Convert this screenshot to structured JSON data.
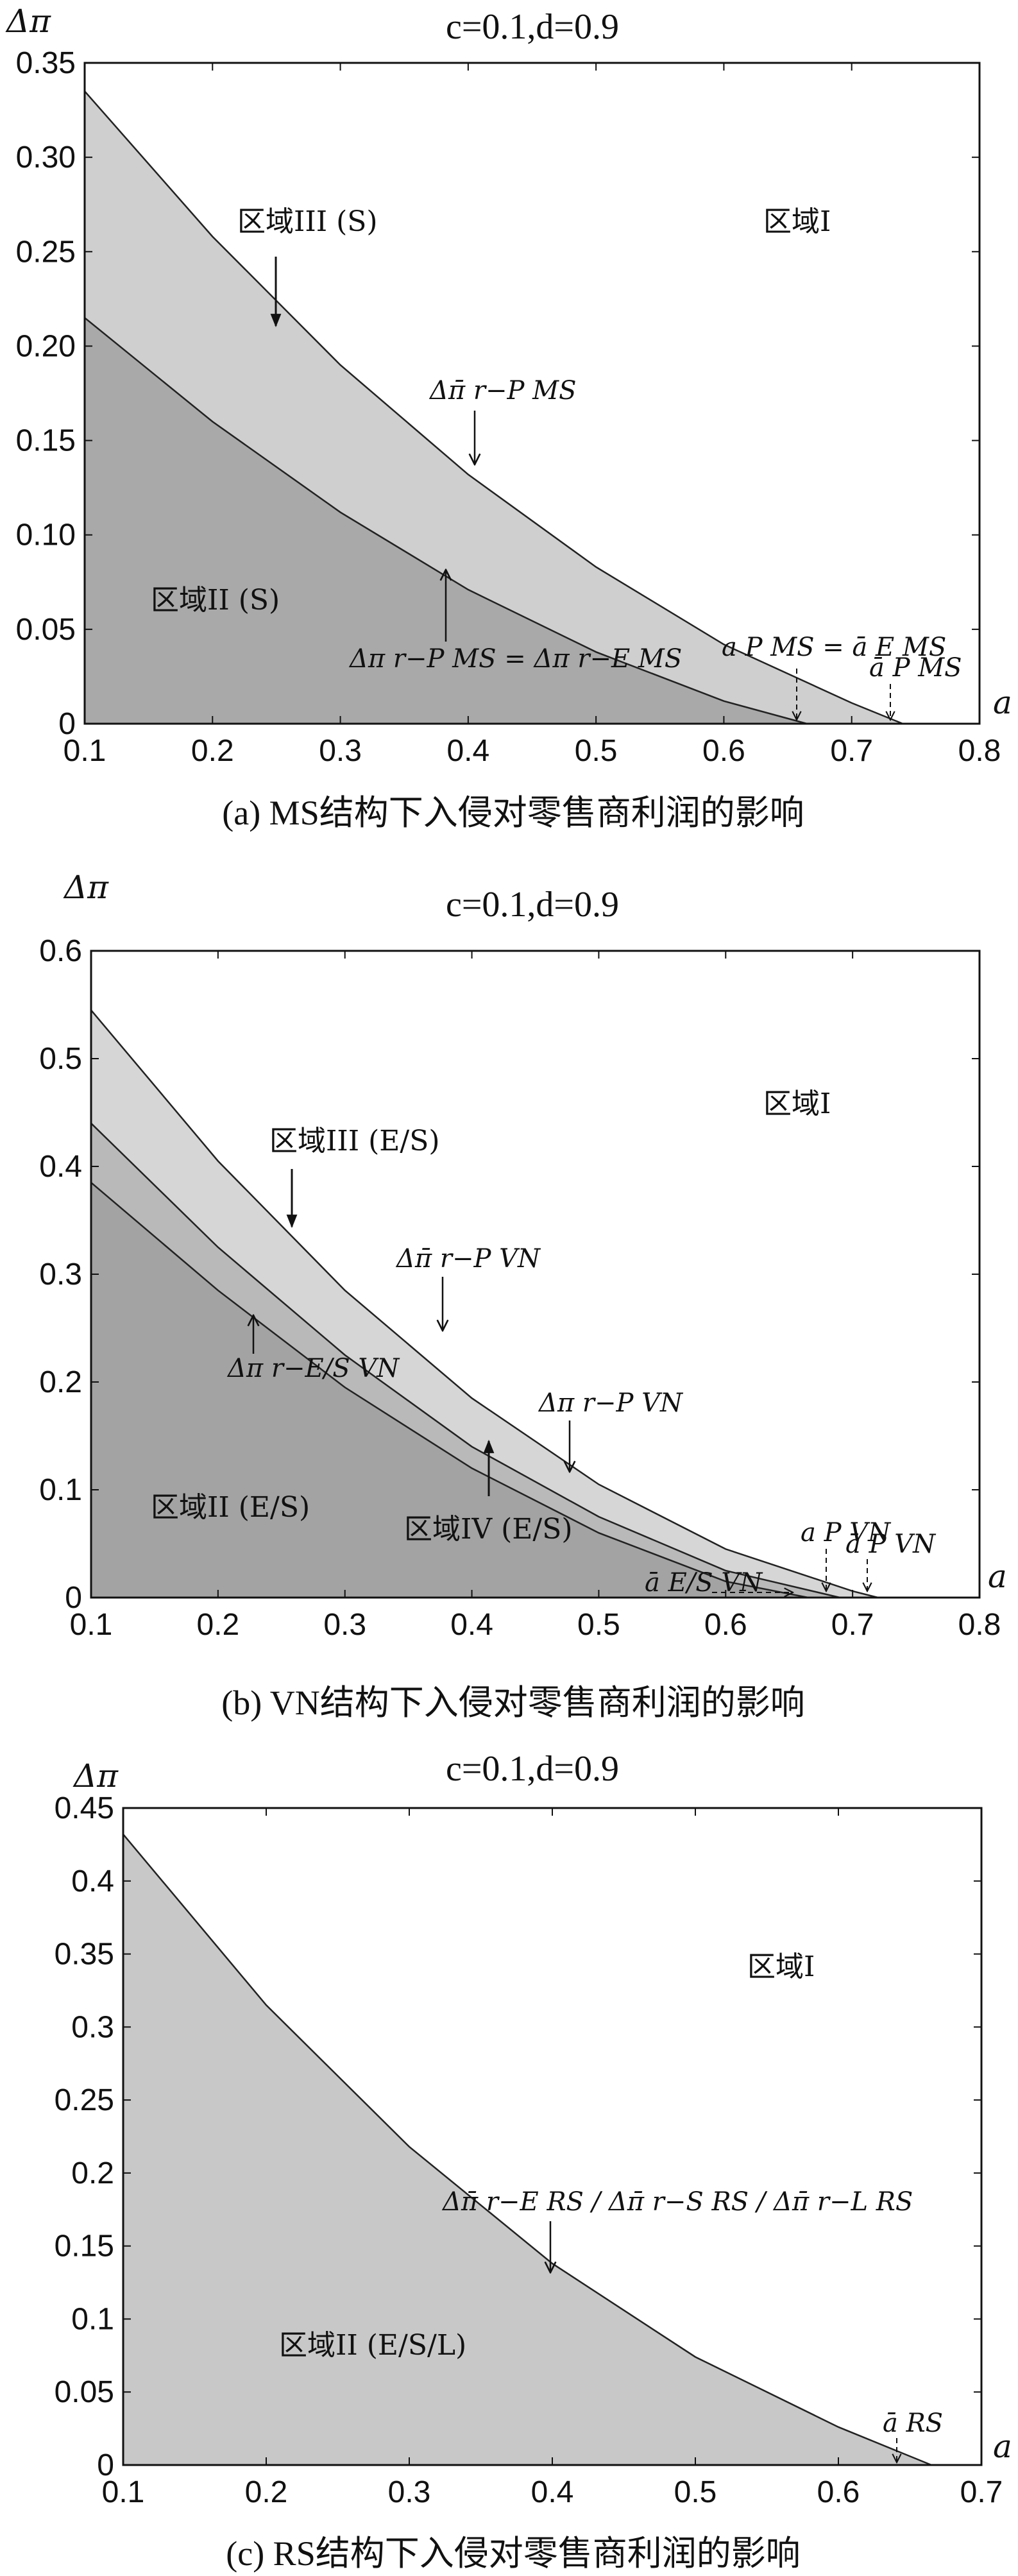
{
  "chart_data": [
    {
      "type": "area",
      "title": "c=0.1,d=0.9",
      "ylabel": "Δπ",
      "xlabel": "a",
      "xlim": [
        0.1,
        0.8
      ],
      "ylim": [
        0,
        0.35
      ],
      "xticks": [
        "0.1",
        "0.2",
        "0.3",
        "0.4",
        "0.5",
        "0.6",
        "0.7",
        "0.8"
      ],
      "yticks": [
        "0",
        "0.05",
        "0.10",
        "0.15",
        "0.20",
        "0.25",
        "0.30",
        "0.35"
      ],
      "series": [
        {
          "x": [
            0.1,
            0.2,
            0.3,
            0.4,
            0.5,
            0.6,
            0.7,
            0.74
          ],
          "values": [
            0.335,
            0.258,
            0.19,
            0.132,
            0.083,
            0.042,
            0.011,
            0.0
          ]
        },
        {
          "x": [
            0.1,
            0.2,
            0.3,
            0.4,
            0.5,
            0.6,
            0.665
          ],
          "values": [
            0.215,
            0.16,
            0.112,
            0.071,
            0.038,
            0.012,
            0.0
          ]
        }
      ],
      "regions": [
        "区域I",
        "区域III (S)",
        "区域II (S)"
      ],
      "annotations": [
        "Δπ̄ r−P MS",
        "Δπ r−P MS = Δπ r−E MS",
        "a P MS = ā E MS",
        "ā P MS"
      ],
      "caption": "(a) MS结构下入侵对零售商利润的影响"
    },
    {
      "type": "area",
      "title": "c=0.1,d=0.9",
      "ylabel": "Δπ",
      "xlabel": "a",
      "xlim": [
        0.1,
        0.8
      ],
      "ylim": [
        0,
        0.6
      ],
      "xticks": [
        "0.1",
        "0.2",
        "0.3",
        "0.4",
        "0.5",
        "0.6",
        "0.7",
        "0.8"
      ],
      "yticks": [
        "0",
        "0.1",
        "0.2",
        "0.3",
        "0.4",
        "0.5",
        "0.6"
      ],
      "series": [
        {
          "x": [
            0.1,
            0.2,
            0.3,
            0.4,
            0.5,
            0.6,
            0.7,
            0.72
          ],
          "values": [
            0.545,
            0.405,
            0.285,
            0.185,
            0.105,
            0.045,
            0.006,
            0.0
          ]
        },
        {
          "x": [
            0.1,
            0.2,
            0.3,
            0.4,
            0.5,
            0.6,
            0.69
          ],
          "values": [
            0.44,
            0.325,
            0.225,
            0.14,
            0.075,
            0.025,
            0.0
          ]
        },
        {
          "x": [
            0.1,
            0.2,
            0.3,
            0.4,
            0.5,
            0.6,
            0.665
          ],
          "values": [
            0.385,
            0.285,
            0.195,
            0.12,
            0.06,
            0.015,
            0.0
          ]
        }
      ],
      "regions": [
        "区域I",
        "区域III (E/S)",
        "区域II (E/S)",
        "区域IV (E/S)"
      ],
      "annotations": [
        "Δπ̄ r−P VN",
        "Δπ r−E/S VN",
        "Δπ r−P VN",
        "a P VN",
        "ā P VN",
        "ā E/S VN"
      ],
      "caption": "(b) VN结构下入侵对零售商利润的影响"
    },
    {
      "type": "area",
      "title": "c=0.1,d=0.9",
      "ylabel": "Δπ",
      "xlabel": "a",
      "xlim": [
        0.1,
        0.7
      ],
      "ylim": [
        0,
        0.45
      ],
      "xticks": [
        "0.1",
        "0.2",
        "0.3",
        "0.4",
        "0.5",
        "0.6",
        "0.7"
      ],
      "yticks": [
        "0",
        "0.05",
        "0.1",
        "0.15",
        "0.2",
        "0.25",
        "0.3",
        "0.35",
        "0.4",
        "0.45"
      ],
      "series": [
        {
          "x": [
            0.1,
            0.2,
            0.3,
            0.4,
            0.5,
            0.6,
            0.665
          ],
          "values": [
            0.432,
            0.315,
            0.218,
            0.138,
            0.074,
            0.026,
            0.0
          ]
        }
      ],
      "regions": [
        "区域I",
        "区域II (E/S/L)"
      ],
      "annotations": [
        "Δπ̄ r−E RS / Δπ̄ r−S RS / Δπ̄ r−L RS",
        "ā RS"
      ],
      "caption": "(c) RS结构下入侵对零售商利润的影响"
    }
  ]
}
